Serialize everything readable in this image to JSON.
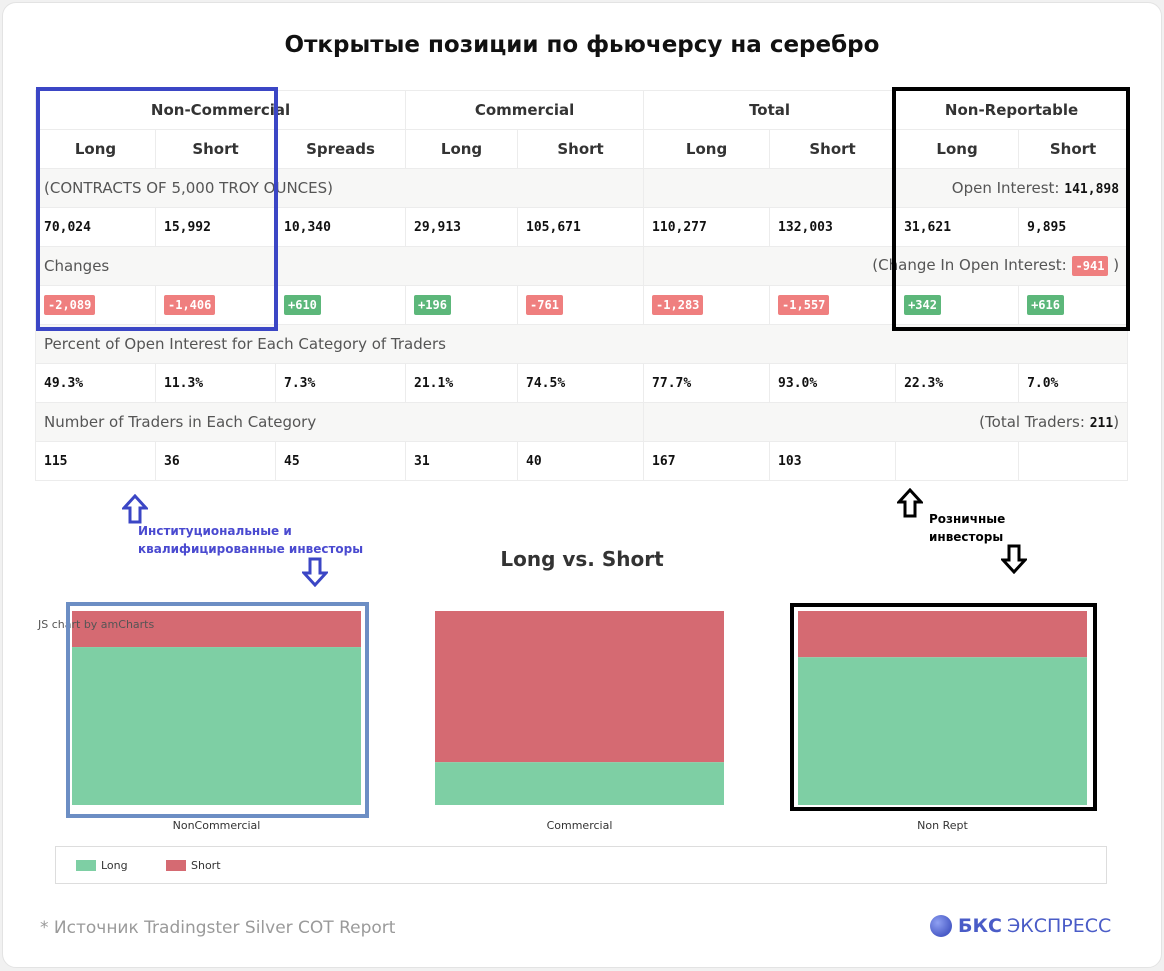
{
  "page_title": "Открытые позиции по фьючерсу на серебро",
  "table": {
    "groups": [
      "Non-Commercial",
      "Commercial",
      "Total",
      "Non-Reportable"
    ],
    "subheaders": [
      "Long",
      "Short",
      "Spreads",
      "Long",
      "Short",
      "Long",
      "Short",
      "Long",
      "Short"
    ],
    "contracts_label": "(CONTRACTS OF 5,000 TROY OUNCES)",
    "open_interest_label": "Open Interest:",
    "open_interest_value": "141,898",
    "positions": [
      "70,024",
      "15,992",
      "10,340",
      "29,913",
      "105,671",
      "110,277",
      "132,003",
      "31,621",
      "9,895"
    ],
    "changes_label": "Changes",
    "change_oi_label_start": "(Change In Open Interest:",
    "change_oi_value": "-941",
    "change_oi_label_end": ")",
    "changes": [
      "-2,089",
      "-1,406",
      "+610",
      "+196",
      "-761",
      "-1,283",
      "-1,557",
      "+342",
      "+616"
    ],
    "percent_label": "Percent of Open Interest for Each Category of Traders",
    "percents": [
      "49.3%",
      "11.3%",
      "7.3%",
      "21.1%",
      "74.5%",
      "77.7%",
      "93.0%",
      "22.3%",
      "7.0%"
    ],
    "traders_label": "Number of Traders in Each Category",
    "total_traders_label_start": "(Total Traders:",
    "total_traders_value": "211",
    "total_traders_label_end": ")",
    "traders": [
      "115",
      "36",
      "45",
      "31",
      "40",
      "167",
      "103",
      "",
      ""
    ]
  },
  "annotations": {
    "institutional": [
      "Институциональные и",
      "квалифицированные инвесторы"
    ],
    "retail": [
      "Розничные",
      "инвесторы"
    ],
    "blue": "#3b46c5",
    "black": "#000000"
  },
  "chart_data": {
    "type": "bar",
    "stacking": "100%",
    "title": "Long vs. Short",
    "credit": "JS chart by amCharts",
    "categories": [
      "NonCommercial",
      "Commercial",
      "Non Rept"
    ],
    "series": [
      {
        "name": "Long",
        "values": [
          70024,
          29913,
          31621
        ],
        "color": "#7ecfa4"
      },
      {
        "name": "Short",
        "values": [
          15992,
          105671,
          9895
        ],
        "color": "#d56a72"
      }
    ],
    "legend_position": "bottom",
    "grid": false
  },
  "footer": {
    "source": "*  Источник Tradingster Silver COT Report",
    "brand_bold": "БКС",
    "brand_rest": "ЭКСПРЕСС",
    "brand_color": "#4a5cc7"
  }
}
